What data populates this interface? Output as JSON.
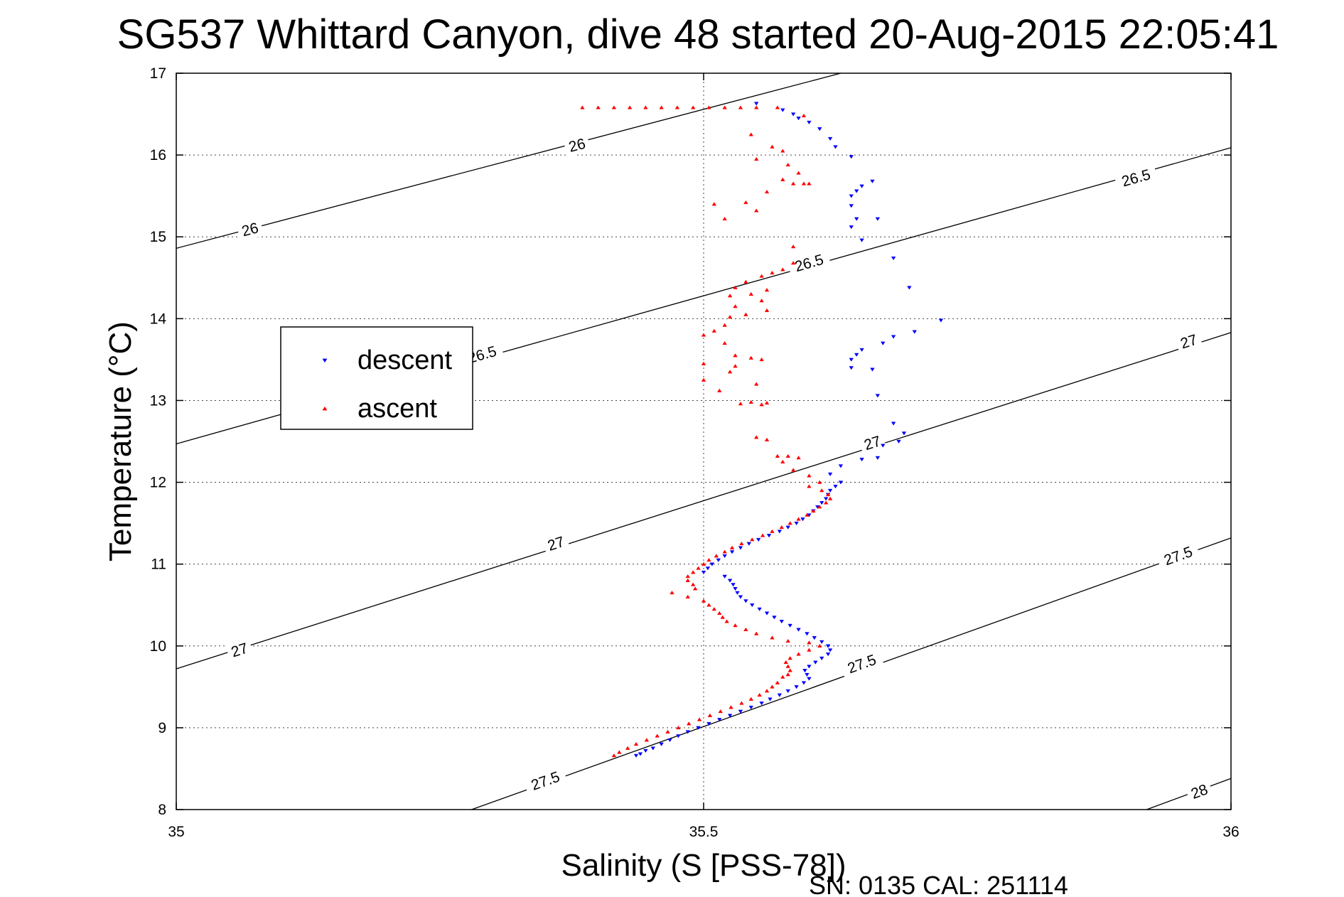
{
  "chart_data": {
    "type": "scatter",
    "title": "SG537 Whittard Canyon, dive 48 started 20-Aug-2015 22:05:41",
    "xlabel": "Salinity (S [PSS-78])",
    "ylabel": "Temperature (°C)",
    "xlim": [
      35,
      36
    ],
    "ylim": [
      8,
      17
    ],
    "x_ticks": [
      35,
      35.5,
      36
    ],
    "y_ticks": [
      8,
      9,
      10,
      11,
      12,
      13,
      14,
      15,
      16,
      17
    ],
    "grid": true,
    "legend_position": "left",
    "footer": "SN: 0135  CAL: 251114",
    "density_contours": [
      {
        "level": "26",
        "points": [
          [
            35,
            14.86
          ],
          [
            35.63,
            17.0
          ]
        ],
        "labels": [
          [
            35.07,
            15.09
          ],
          [
            35.38,
            16.12
          ]
        ]
      },
      {
        "level": "26.5",
        "points": [
          [
            35,
            12.47
          ],
          [
            36,
            16.09
          ]
        ],
        "labels": [
          [
            35.29,
            13.56
          ],
          [
            35.6,
            14.68
          ],
          [
            35.91,
            15.72
          ]
        ]
      },
      {
        "level": "27",
        "points": [
          [
            35,
            9.72
          ],
          [
            36,
            13.83
          ]
        ],
        "labels": [
          [
            35.06,
            9.95
          ],
          [
            35.36,
            11.25
          ],
          [
            35.66,
            12.48
          ],
          [
            35.96,
            13.72
          ]
        ]
      },
      {
        "level": "27.5",
        "points": [
          [
            35.28,
            8.0
          ],
          [
            36,
            11.32
          ]
        ],
        "labels": [
          [
            35.35,
            8.35
          ],
          [
            35.65,
            9.78
          ],
          [
            35.95,
            11.1
          ]
        ]
      },
      {
        "level": "28",
        "points": [
          [
            35.92,
            8.0
          ],
          [
            36,
            8.38
          ]
        ],
        "labels": [
          [
            35.97,
            8.22
          ]
        ]
      }
    ],
    "series": [
      {
        "name": "descent",
        "color": "#0000ff",
        "marker": "triangle-down",
        "points": [
          [
            35.55,
            16.63
          ],
          [
            35.575,
            16.55
          ],
          [
            35.585,
            16.5
          ],
          [
            35.59,
            16.45
          ],
          [
            35.6,
            16.4
          ],
          [
            35.61,
            16.32
          ],
          [
            35.62,
            16.2
          ],
          [
            35.625,
            16.1
          ],
          [
            35.64,
            15.98
          ],
          [
            35.66,
            15.68
          ],
          [
            35.65,
            15.62
          ],
          [
            35.645,
            15.56
          ],
          [
            35.64,
            15.5
          ],
          [
            35.64,
            15.38
          ],
          [
            35.645,
            15.22
          ],
          [
            35.665,
            15.22
          ],
          [
            35.64,
            15.12
          ],
          [
            35.65,
            14.96
          ],
          [
            35.68,
            14.74
          ],
          [
            35.695,
            14.38
          ],
          [
            35.725,
            13.98
          ],
          [
            35.7,
            13.84
          ],
          [
            35.68,
            13.78
          ],
          [
            35.67,
            13.7
          ],
          [
            35.65,
            13.62
          ],
          [
            35.645,
            13.56
          ],
          [
            35.64,
            13.5
          ],
          [
            35.64,
            13.4
          ],
          [
            35.66,
            13.38
          ],
          [
            35.665,
            13.06
          ],
          [
            35.68,
            12.72
          ],
          [
            35.69,
            12.6
          ],
          [
            35.685,
            12.5
          ],
          [
            35.67,
            12.45
          ],
          [
            35.665,
            12.3
          ],
          [
            35.65,
            12.28
          ],
          [
            35.63,
            12.2
          ],
          [
            35.62,
            12.1
          ],
          [
            35.63,
            12.0
          ],
          [
            35.625,
            11.95
          ],
          [
            35.62,
            11.9
          ],
          [
            35.618,
            11.85
          ],
          [
            35.616,
            11.8
          ],
          [
            35.612,
            11.75
          ],
          [
            35.608,
            11.7
          ],
          [
            35.604,
            11.65
          ],
          [
            35.6,
            11.6
          ],
          [
            35.594,
            11.55
          ],
          [
            35.588,
            11.5
          ],
          [
            35.58,
            11.45
          ],
          [
            35.572,
            11.4
          ],
          [
            35.562,
            11.35
          ],
          [
            35.552,
            11.3
          ],
          [
            35.543,
            11.25
          ],
          [
            35.535,
            11.2
          ],
          [
            35.527,
            11.15
          ],
          [
            35.52,
            11.1
          ],
          [
            35.514,
            11.05
          ],
          [
            35.508,
            11.0
          ],
          [
            35.504,
            10.95
          ],
          [
            35.5,
            10.9
          ],
          [
            35.52,
            10.85
          ],
          [
            35.525,
            10.8
          ],
          [
            35.528,
            10.75
          ],
          [
            35.53,
            10.7
          ],
          [
            35.532,
            10.65
          ],
          [
            35.535,
            10.6
          ],
          [
            35.54,
            10.55
          ],
          [
            35.546,
            10.5
          ],
          [
            35.553,
            10.45
          ],
          [
            35.56,
            10.4
          ],
          [
            35.567,
            10.35
          ],
          [
            35.574,
            10.3
          ],
          [
            35.582,
            10.25
          ],
          [
            35.59,
            10.2
          ],
          [
            35.598,
            10.15
          ],
          [
            35.605,
            10.1
          ],
          [
            35.612,
            10.05
          ],
          [
            35.618,
            10.0
          ],
          [
            35.62,
            9.95
          ],
          [
            35.618,
            9.9
          ],
          [
            35.612,
            9.85
          ],
          [
            35.606,
            9.8
          ],
          [
            35.6,
            9.75
          ],
          [
            35.596,
            9.7
          ],
          [
            35.598,
            9.65
          ],
          [
            35.6,
            9.6
          ],
          [
            35.595,
            9.55
          ],
          [
            35.588,
            9.5
          ],
          [
            35.58,
            9.45
          ],
          [
            35.572,
            9.4
          ],
          [
            35.563,
            9.35
          ],
          [
            35.555,
            9.3
          ],
          [
            35.545,
            9.25
          ],
          [
            35.535,
            9.2
          ],
          [
            35.525,
            9.15
          ],
          [
            35.515,
            9.1
          ],
          [
            35.505,
            9.05
          ],
          [
            35.495,
            9.0
          ],
          [
            35.485,
            8.95
          ],
          [
            35.476,
            8.9
          ],
          [
            35.468,
            8.85
          ],
          [
            35.46,
            8.8
          ],
          [
            35.452,
            8.75
          ],
          [
            35.445,
            8.72
          ],
          [
            35.44,
            8.68
          ],
          [
            35.436,
            8.66
          ]
        ]
      },
      {
        "name": "ascent",
        "color": "#ff0000",
        "marker": "triangle-up",
        "points": [
          [
            35.385,
            16.58
          ],
          [
            35.4,
            16.58
          ],
          [
            35.415,
            16.58
          ],
          [
            35.43,
            16.58
          ],
          [
            35.445,
            16.58
          ],
          [
            35.46,
            16.58
          ],
          [
            35.475,
            16.58
          ],
          [
            35.49,
            16.58
          ],
          [
            35.505,
            16.58
          ],
          [
            35.52,
            16.58
          ],
          [
            35.535,
            16.58
          ],
          [
            35.55,
            16.58
          ],
          [
            35.57,
            16.58
          ],
          [
            35.595,
            16.48
          ],
          [
            35.545,
            16.25
          ],
          [
            35.565,
            16.1
          ],
          [
            35.575,
            16.05
          ],
          [
            35.55,
            15.95
          ],
          [
            35.58,
            15.88
          ],
          [
            35.59,
            15.78
          ],
          [
            35.575,
            15.7
          ],
          [
            35.585,
            15.65
          ],
          [
            35.595,
            15.65
          ],
          [
            35.6,
            15.65
          ],
          [
            35.56,
            15.55
          ],
          [
            35.54,
            15.42
          ],
          [
            35.51,
            15.4
          ],
          [
            35.55,
            15.32
          ],
          [
            35.52,
            15.22
          ],
          [
            35.585,
            14.88
          ],
          [
            35.585,
            14.68
          ],
          [
            35.575,
            14.6
          ],
          [
            35.565,
            14.56
          ],
          [
            35.555,
            14.52
          ],
          [
            35.54,
            14.45
          ],
          [
            35.53,
            14.38
          ],
          [
            35.56,
            14.35
          ],
          [
            35.545,
            14.3
          ],
          [
            35.525,
            14.28
          ],
          [
            35.555,
            14.22
          ],
          [
            35.53,
            14.15
          ],
          [
            35.56,
            14.1
          ],
          [
            35.54,
            14.05
          ],
          [
            35.525,
            14.02
          ],
          [
            35.52,
            13.92
          ],
          [
            35.51,
            13.85
          ],
          [
            35.5,
            13.8
          ],
          [
            35.52,
            13.7
          ],
          [
            35.53,
            13.55
          ],
          [
            35.545,
            13.52
          ],
          [
            35.555,
            13.5
          ],
          [
            35.5,
            13.45
          ],
          [
            35.53,
            13.42
          ],
          [
            35.525,
            13.35
          ],
          [
            35.5,
            13.25
          ],
          [
            35.55,
            13.2
          ],
          [
            35.515,
            13.12
          ],
          [
            35.545,
            12.98
          ],
          [
            35.56,
            12.97
          ],
          [
            35.535,
            12.96
          ],
          [
            35.555,
            12.95
          ],
          [
            35.55,
            12.55
          ],
          [
            35.56,
            12.52
          ],
          [
            35.57,
            12.32
          ],
          [
            35.58,
            12.32
          ],
          [
            35.59,
            12.3
          ],
          [
            35.575,
            12.25
          ],
          [
            35.585,
            12.15
          ],
          [
            35.6,
            12.08
          ],
          [
            35.61,
            12.0
          ],
          [
            35.6,
            11.95
          ],
          [
            35.612,
            11.9
          ],
          [
            35.618,
            11.85
          ],
          [
            35.62,
            11.8
          ],
          [
            35.616,
            11.75
          ],
          [
            35.61,
            11.7
          ],
          [
            35.604,
            11.65
          ],
          [
            35.598,
            11.6
          ],
          [
            35.59,
            11.55
          ],
          [
            35.582,
            11.5
          ],
          [
            35.574,
            11.45
          ],
          [
            35.565,
            11.4
          ],
          [
            35.556,
            11.35
          ],
          [
            35.546,
            11.3
          ],
          [
            35.536,
            11.25
          ],
          [
            35.527,
            11.2
          ],
          [
            35.52,
            11.15
          ],
          [
            35.512,
            11.1
          ],
          [
            35.505,
            11.05
          ],
          [
            35.5,
            11.0
          ],
          [
            35.495,
            10.95
          ],
          [
            35.49,
            10.9
          ],
          [
            35.485,
            10.85
          ],
          [
            35.485,
            10.8
          ],
          [
            35.49,
            10.75
          ],
          [
            35.492,
            10.7
          ],
          [
            35.47,
            10.65
          ],
          [
            35.485,
            10.6
          ],
          [
            35.5,
            10.55
          ],
          [
            35.505,
            10.5
          ],
          [
            35.51,
            10.45
          ],
          [
            35.515,
            10.4
          ],
          [
            35.518,
            10.35
          ],
          [
            35.522,
            10.3
          ],
          [
            35.53,
            10.25
          ],
          [
            35.54,
            10.2
          ],
          [
            35.55,
            10.15
          ],
          [
            35.565,
            10.1
          ],
          [
            35.58,
            10.06
          ],
          [
            35.6,
            10.04
          ],
          [
            35.61,
            10.0
          ],
          [
            35.6,
            9.95
          ],
          [
            35.59,
            9.9
          ],
          [
            35.582,
            9.85
          ],
          [
            35.578,
            9.8
          ],
          [
            35.58,
            9.75
          ],
          [
            35.582,
            9.7
          ],
          [
            35.58,
            9.65
          ],
          [
            35.575,
            9.62
          ],
          [
            35.57,
            9.55
          ],
          [
            35.565,
            9.5
          ],
          [
            35.56,
            9.45
          ],
          [
            35.553,
            9.4
          ],
          [
            35.545,
            9.35
          ],
          [
            35.536,
            9.3
          ],
          [
            35.526,
            9.25
          ],
          [
            35.516,
            9.2
          ],
          [
            35.506,
            9.15
          ],
          [
            35.496,
            9.1
          ],
          [
            35.486,
            9.05
          ],
          [
            35.476,
            9.0
          ],
          [
            35.466,
            8.95
          ],
          [
            35.456,
            8.9
          ],
          [
            35.446,
            8.85
          ],
          [
            35.436,
            8.8
          ],
          [
            35.428,
            8.75
          ],
          [
            35.42,
            8.7
          ],
          [
            35.415,
            8.66
          ]
        ]
      }
    ]
  }
}
